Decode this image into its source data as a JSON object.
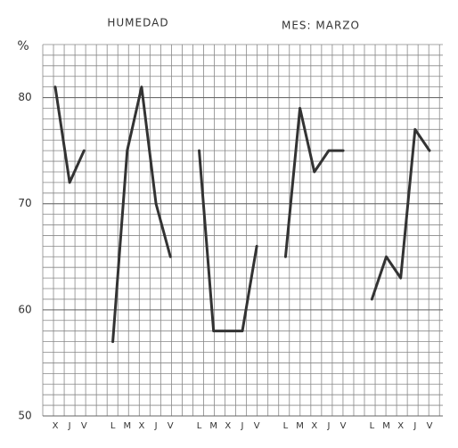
{
  "chart_data": {
    "type": "line",
    "title": "HUMEDAD",
    "annotation": "MES: MARZO",
    "y_label": "%",
    "categories": [
      "X",
      "J",
      "V",
      null,
      "L",
      "M",
      "X",
      "J",
      "V",
      null,
      "L",
      "M",
      "X",
      "J",
      "V",
      null,
      "L",
      "M",
      "X",
      "J",
      "V",
      null,
      "L",
      "M",
      "X",
      "J",
      "V"
    ],
    "series": [
      {
        "name": "Humedad",
        "color": "#333333",
        "values": [
          81,
          72,
          75,
          null,
          57,
          75,
          81,
          70,
          65,
          null,
          75,
          58,
          58,
          58,
          66,
          null,
          65,
          79,
          73,
          75,
          75,
          null,
          61,
          65,
          63,
          77,
          75
        ]
      }
    ],
    "ylim": [
      50,
      85
    ],
    "yticks": [
      50,
      60,
      70,
      80
    ],
    "grid": true
  }
}
